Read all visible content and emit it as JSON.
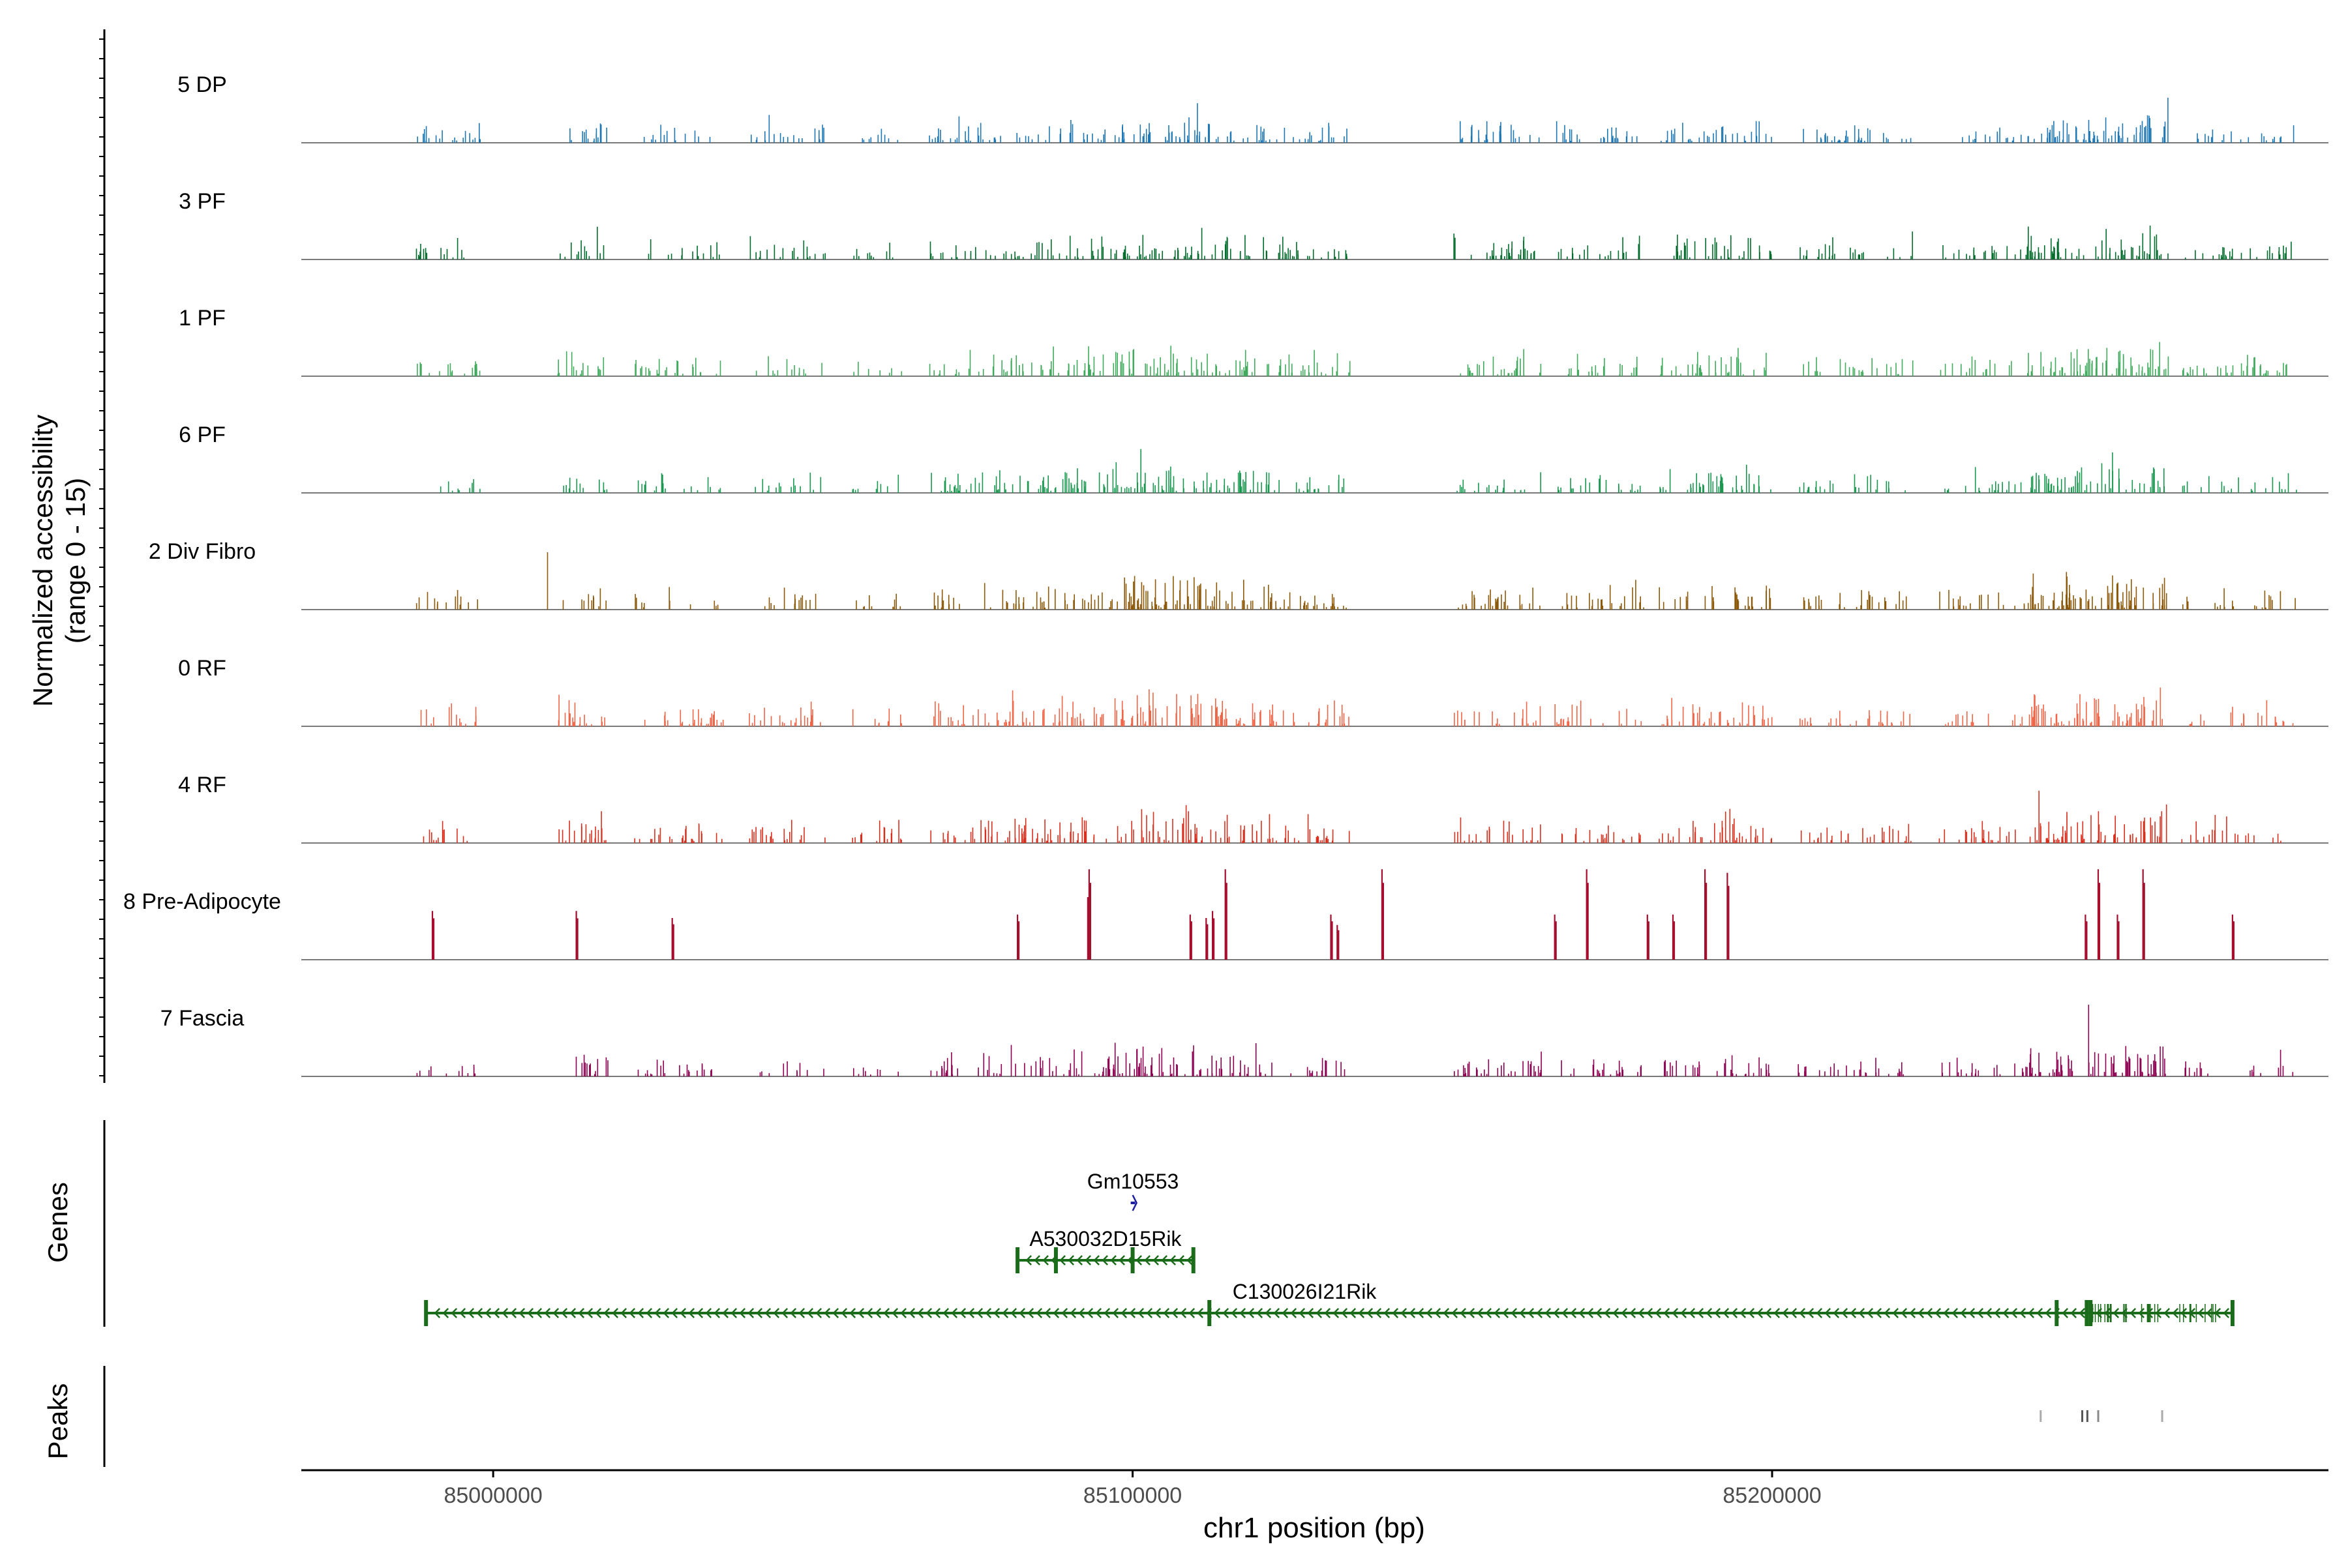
{
  "chart_data": {
    "type": "coverage-track",
    "title": "",
    "y_axis_label_line1": "Normalized accessibility",
    "y_axis_label_line2": "(range 0 - 15)",
    "ylim": [
      0,
      15
    ],
    "xlabel": "chr1 position (bp)",
    "xlim": [
      84970000,
      85287000
    ],
    "x_ticks": [
      85000000,
      85100000,
      85200000
    ],
    "x_tick_labels": [
      "85000000",
      "85100000",
      "85200000"
    ],
    "tracks": [
      {
        "name": "5 DP",
        "color": "#1f78b4"
      },
      {
        "name": "3 PF",
        "color": "#006d2c"
      },
      {
        "name": "1 PF",
        "color": "#41ab5d"
      },
      {
        "name": "6 PF",
        "color": "#1a9850"
      },
      {
        "name": "2 Div Fibro",
        "color": "#8c5a0a"
      },
      {
        "name": "0 RF",
        "color": "#ef6548"
      },
      {
        "name": "4 RF",
        "color": "#d7301f"
      },
      {
        "name": "8 Pre-Adipocyte",
        "color": "#a50f2d"
      },
      {
        "name": "7 Fascia",
        "color": "#8e0152"
      }
    ],
    "pre_adipocyte_peaks": [
      {
        "pos": 84990500,
        "value": 7
      },
      {
        "pos": 85013000,
        "value": 7
      },
      {
        "pos": 85028000,
        "value": 6
      },
      {
        "pos": 85082000,
        "value": 6.5
      },
      {
        "pos": 85093000,
        "value": 9
      },
      {
        "pos": 85093200,
        "value": 13
      },
      {
        "pos": 85109000,
        "value": 6.5
      },
      {
        "pos": 85111500,
        "value": 6
      },
      {
        "pos": 85112500,
        "value": 7
      },
      {
        "pos": 85114500,
        "value": 13
      },
      {
        "pos": 85131000,
        "value": 6.5
      },
      {
        "pos": 85132000,
        "value": 5
      },
      {
        "pos": 85139000,
        "value": 13
      },
      {
        "pos": 85166000,
        "value": 6.5
      },
      {
        "pos": 85171000,
        "value": 13
      },
      {
        "pos": 85180500,
        "value": 6.5
      },
      {
        "pos": 85184500,
        "value": 6.5
      },
      {
        "pos": 85189500,
        "value": 13
      },
      {
        "pos": 85193000,
        "value": 12.5
      },
      {
        "pos": 85249000,
        "value": 6.5
      },
      {
        "pos": 85251000,
        "value": 13
      },
      {
        "pos": 85254000,
        "value": 6.5
      },
      {
        "pos": 85258000,
        "value": 13
      },
      {
        "pos": 85272000,
        "value": 6.5
      }
    ],
    "genes_panel_label": "Genes",
    "genes": [
      {
        "name": "Gm10553",
        "start": 85099700,
        "end": 85100400,
        "color": "#1e1ea0",
        "row": 0
      },
      {
        "name": "A530032D15Rik",
        "start": 85082000,
        "end": 85109500,
        "color": "#1a6b1a",
        "row": 1
      },
      {
        "name": "C130026I21Rik",
        "start": 84989500,
        "end": 85272000,
        "color": "#1a6b1a",
        "row": 2
      }
    ],
    "peaks_panel_label": "Peaks",
    "peaks": [
      {
        "pos": 85242000,
        "shade": "#aaaaaa"
      },
      {
        "pos": 85248500,
        "shade": "#555555"
      },
      {
        "pos": 85249300,
        "shade": "#555555"
      },
      {
        "pos": 85251000,
        "shade": "#888888"
      },
      {
        "pos": 85261000,
        "shade": "#aaaaaa"
      }
    ]
  }
}
